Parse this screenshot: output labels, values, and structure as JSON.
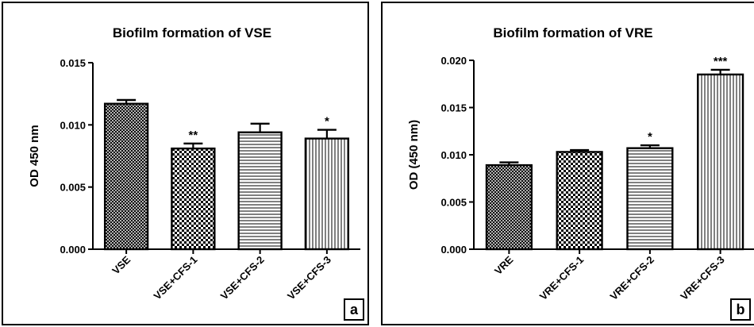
{
  "chart_data": [
    {
      "type": "bar",
      "title": "Biofilm formation of VSE",
      "ylabel": "OD 450 nm",
      "xlabel": "",
      "ylim": [
        0,
        0.015
      ],
      "yticks": [
        "0.000",
        "0.005",
        "0.010",
        "0.015"
      ],
      "categories": [
        "VSE",
        "VSE+CFS-1",
        "VSE+CFS-2",
        "VSE+CFS-3"
      ],
      "values": [
        0.0117,
        0.0081,
        0.0094,
        0.0089
      ],
      "errors": [
        0.0003,
        0.0004,
        0.0007,
        0.0007
      ],
      "significance": [
        "",
        "**",
        "",
        "*"
      ],
      "patterns": [
        "crosshatch",
        "checker",
        "horizontal",
        "vertical"
      ],
      "panel_label": "a",
      "grid": false
    },
    {
      "type": "bar",
      "title": "Biofilm formation of VRE",
      "ylabel": "OD (450 nm)",
      "xlabel": "",
      "ylim": [
        0,
        0.02
      ],
      "yticks": [
        "0.000",
        "0.005",
        "0.010",
        "0.015",
        "0.020"
      ],
      "categories": [
        "VRE",
        "VRE+CFS-1",
        "VRE+CFS-2",
        "VRE+CFS-3"
      ],
      "values": [
        0.0089,
        0.0103,
        0.0107,
        0.0185
      ],
      "errors": [
        0.0003,
        0.0002,
        0.0003,
        0.0005
      ],
      "significance": [
        "",
        "",
        "*",
        "***"
      ],
      "patterns": [
        "crosshatch",
        "checker",
        "horizontal",
        "vertical"
      ],
      "panel_label": "b",
      "grid": false
    }
  ]
}
